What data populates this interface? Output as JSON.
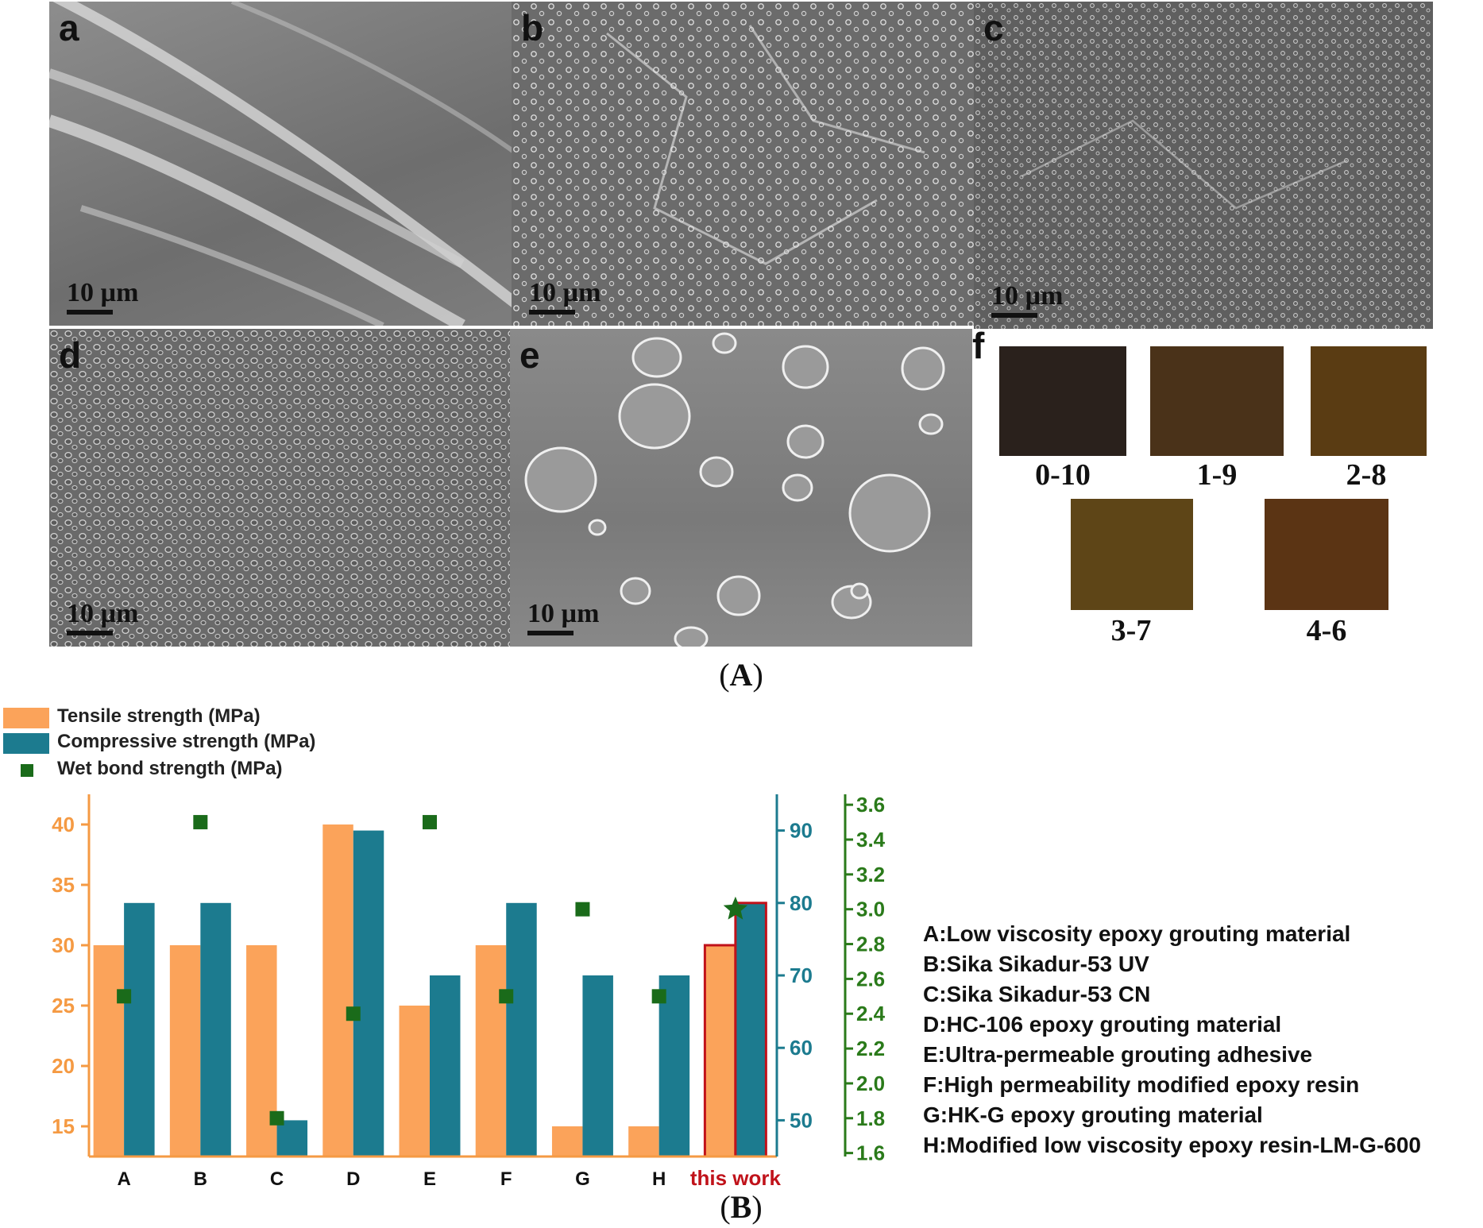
{
  "figure": {
    "panels": {
      "a": {
        "letter": "a",
        "scale": "10 µm"
      },
      "b": {
        "letter": "b",
        "scale": "10 µm"
      },
      "c": {
        "letter": "c",
        "scale": "10 µm"
      },
      "d": {
        "letter": "d",
        "scale": "10 µm"
      },
      "e": {
        "letter": "e",
        "scale": "10 µm"
      },
      "f": {
        "letter": "f"
      }
    },
    "swatches": [
      {
        "label": "0-10",
        "color": "#2a211c"
      },
      {
        "label": "1-9",
        "color": "#4a3219"
      },
      {
        "label": "2-8",
        "color": "#5a3c13"
      },
      {
        "label": "3-7",
        "color": "#5e4517"
      },
      {
        "label": "4-6",
        "color": "#5b3414"
      }
    ],
    "caption_a_open": "(",
    "caption_a_letter": "A",
    "caption_a_close": ")",
    "caption_b_open": "(",
    "caption_b_letter": "B",
    "caption_b_close": ")"
  },
  "legend": {
    "tensile": "Tensile strength (MPa)",
    "compressive": "Compressive strength (MPa)",
    "wet_bond": "Wet bond strength (MPa)"
  },
  "abbreviations": [
    "A:Low viscosity epoxy grouting material",
    "B:Sika Sikadur-53 UV",
    "C:Sika Sikadur-53 CN",
    "D:HC-106 epoxy grouting material",
    "E:Ultra-permeable grouting adhesive",
    "F:High permeability modified epoxy resin",
    "G:HK-G epoxy grouting material",
    "H:Modified low viscosity epoxy resin-LM-G-600"
  ],
  "colors": {
    "tensile": "#fba35a",
    "compressive": "#1c7b8f",
    "wet_bond": "#1a6b1a",
    "highlight": "#c0121a",
    "left_axis": "#f59a43",
    "mid_axis": "#1c7b8f",
    "right_axis": "#2a7a1a"
  },
  "chart_data": {
    "type": "bar",
    "categories": [
      "A",
      "B",
      "C",
      "D",
      "E",
      "F",
      "G",
      "H",
      "this work"
    ],
    "series": [
      {
        "name": "Tensile strength (MPa)",
        "axis": "left",
        "values": [
          30,
          30,
          30,
          40,
          25,
          30,
          15,
          15,
          30
        ]
      },
      {
        "name": "Compressive strength (MPa)",
        "axis": "middle",
        "values": [
          80,
          80,
          50,
          90,
          70,
          80,
          70,
          70,
          80
        ]
      },
      {
        "name": "Wet bond strength (MPa)",
        "axis": "right",
        "marker": "square",
        "values": [
          2.5,
          3.5,
          1.8,
          2.4,
          3.5,
          2.5,
          3.0,
          2.5,
          3.0
        ]
      }
    ],
    "left_axis": {
      "ticks": [
        15,
        20,
        25,
        30,
        35,
        40
      ],
      "range": [
        12.5,
        42.5
      ]
    },
    "middle_axis": {
      "ticks": [
        50,
        60,
        70,
        80,
        90
      ],
      "range": [
        45,
        95
      ]
    },
    "right_axis": {
      "ticks": [
        1.6,
        1.8,
        2.0,
        2.2,
        2.4,
        2.6,
        2.8,
        3.0,
        3.2,
        3.4,
        3.6
      ],
      "range": [
        1.58,
        3.66
      ]
    },
    "highlight_category": "this work",
    "highlight_marker": "star",
    "legend_position": "top-left"
  }
}
